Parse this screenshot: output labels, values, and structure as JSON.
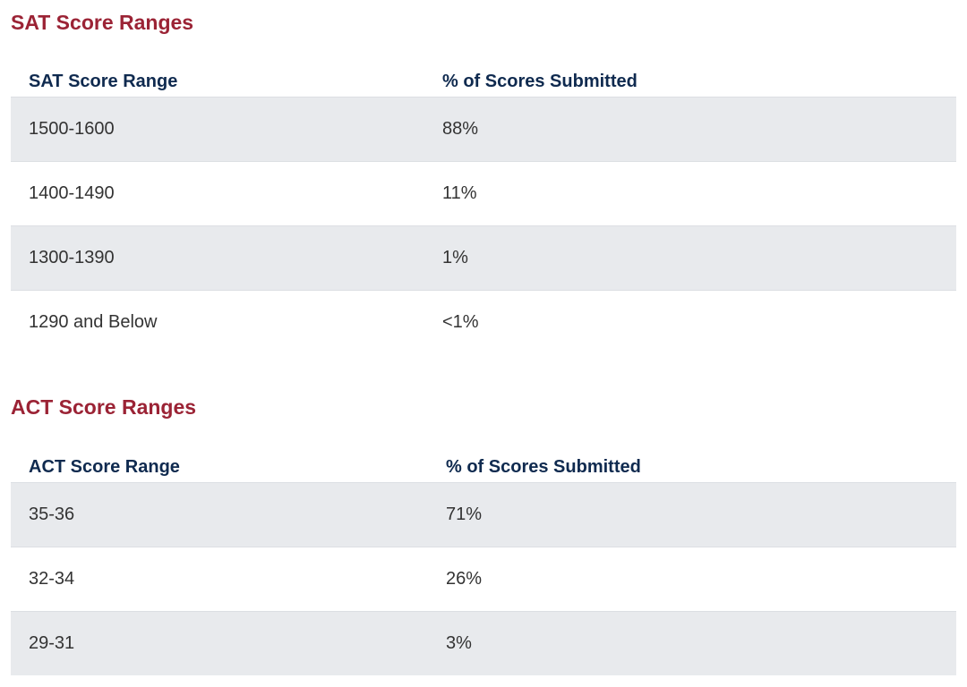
{
  "sat": {
    "title": "SAT Score Ranges",
    "headers": {
      "range": "SAT Score Range",
      "percent": "% of Scores Submitted"
    },
    "rows": [
      {
        "range": "1500-1600",
        "percent": "88%"
      },
      {
        "range": "1400-1490",
        "percent": "11%"
      },
      {
        "range": "1300-1390",
        "percent": "1%"
      },
      {
        "range": "1290 and Below",
        "percent": "<1%"
      }
    ]
  },
  "act": {
    "title": "ACT Score Ranges",
    "headers": {
      "range": "ACT Score Range",
      "percent": "% of Scores Submitted"
    },
    "rows": [
      {
        "range": "35-36",
        "percent": "71%"
      },
      {
        "range": "32-34",
        "percent": "26%"
      },
      {
        "range": "29-31",
        "percent": "3%"
      }
    ]
  },
  "colors": {
    "heading": "#9b2335",
    "header_text": "#0f2a4f",
    "row_shade": "#e8eaed"
  }
}
